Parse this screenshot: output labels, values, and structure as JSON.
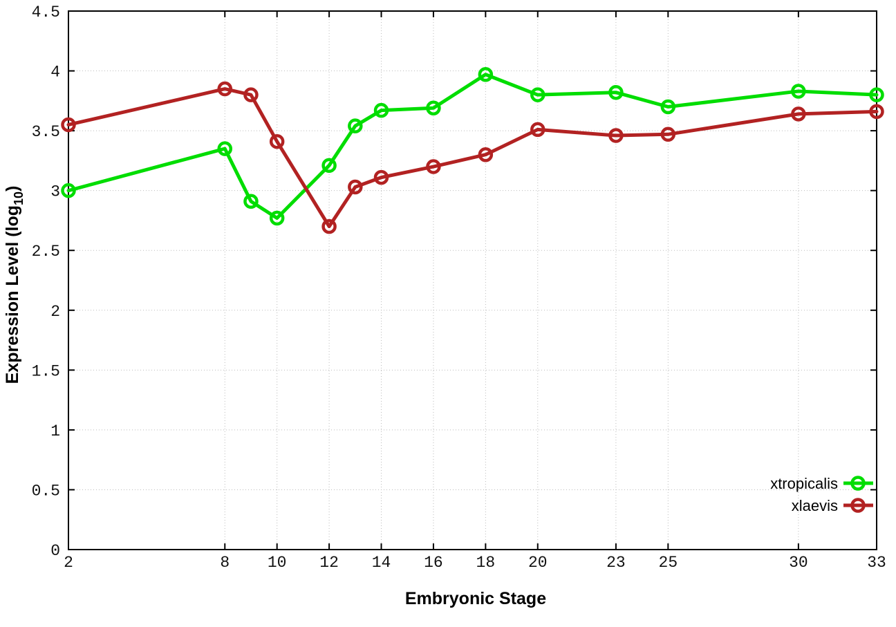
{
  "chart_data": {
    "type": "line",
    "x": [
      2,
      8,
      9,
      10,
      12,
      13,
      14,
      16,
      18,
      20,
      23,
      25,
      30,
      33
    ],
    "series": [
      {
        "name": "xtropicalis",
        "color": "#00dd00",
        "values": [
          3.0,
          3.35,
          2.91,
          2.77,
          3.21,
          3.54,
          3.67,
          3.69,
          3.97,
          3.8,
          3.82,
          3.7,
          3.83,
          3.8
        ]
      },
      {
        "name": "xlaevis",
        "color": "#b22222",
        "values": [
          3.55,
          3.85,
          3.8,
          3.41,
          2.7,
          3.03,
          3.11,
          3.2,
          3.3,
          3.51,
          3.46,
          3.47,
          3.64,
          3.66
        ]
      }
    ],
    "xlabel": "Embryonic Stage",
    "ylabel_main": "Expression Level (log",
    "ylabel_sub": "10",
    "ylabel_close": ")",
    "xlim": [
      2,
      33
    ],
    "ylim": [
      0,
      4.5
    ],
    "xticks": [
      2,
      8,
      10,
      12,
      14,
      16,
      18,
      20,
      23,
      25,
      30,
      33
    ],
    "yticks": [
      0,
      0.5,
      1,
      1.5,
      2,
      2.5,
      3,
      3.5,
      4,
      4.5
    ],
    "grid": true,
    "grid_color": "#bbbbbb",
    "border_color": "#000000",
    "legend_position": "inside-bottom-right",
    "marker": "open-circle"
  }
}
